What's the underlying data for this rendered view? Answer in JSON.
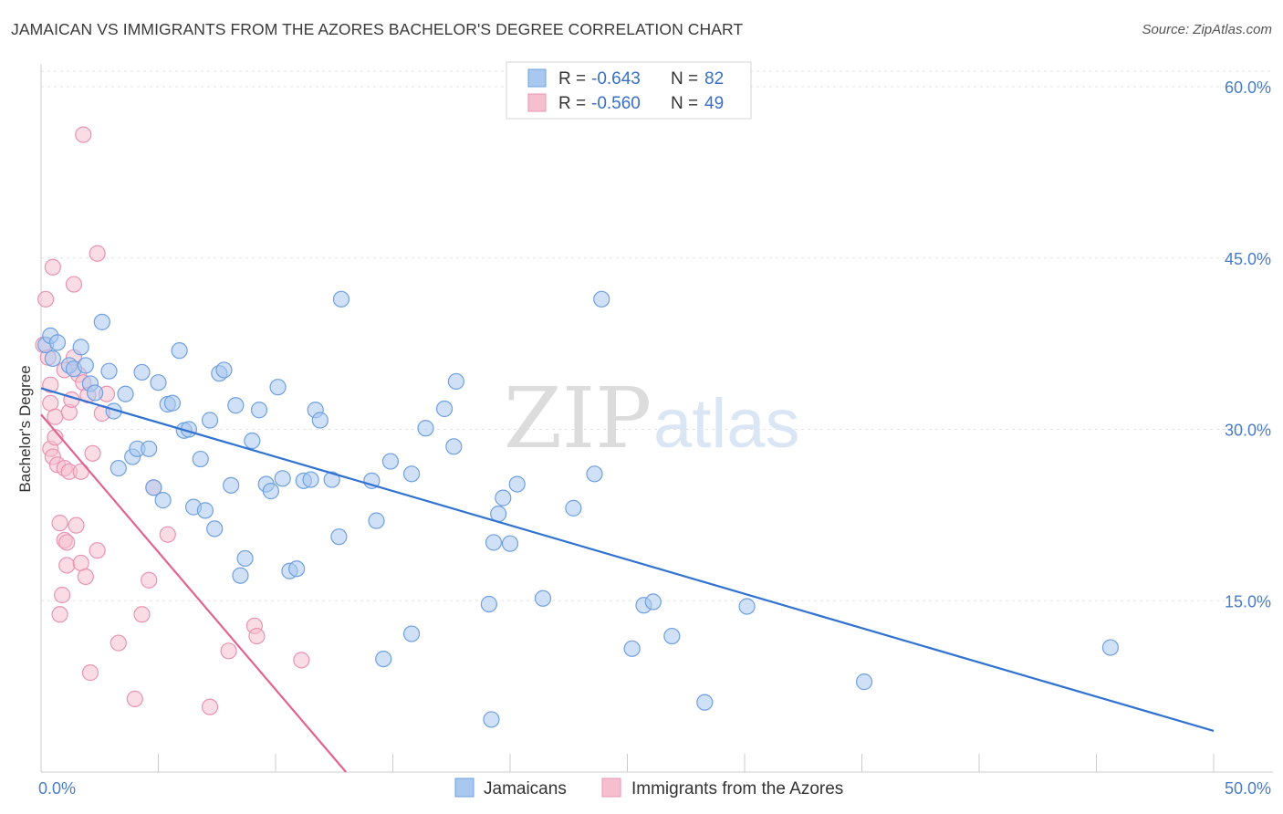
{
  "title": "JAMAICAN VS IMMIGRANTS FROM THE AZORES BACHELOR'S DEGREE CORRELATION CHART",
  "source": "Source: ZipAtlas.com",
  "watermark": {
    "zip": "ZIP",
    "atlas": "atlas"
  },
  "colors": {
    "blue_fill": "#a9c8f0",
    "blue_stroke": "#6fa0e0",
    "blue_line": "#2f72d2",
    "pink_fill": "#f6bfd0",
    "pink_stroke": "#e994b2",
    "pink_line": "#e0648e",
    "grid": "#e3e3e3",
    "axis": "#cccccc",
    "tick_text": "#4a7cc7"
  },
  "legend": {
    "series": [
      {
        "r_label": "R =",
        "r_value": "-0.643",
        "n_label": "N =",
        "n_value": "82"
      },
      {
        "r_label": "R =",
        "r_value": "-0.560",
        "n_label": "N =",
        "n_value": "49"
      }
    ]
  },
  "chart_data": {
    "type": "scatter",
    "title": "JAMAICAN VS IMMIGRANTS FROM THE AZORES BACHELOR'S DEGREE CORRELATION CHART",
    "xlabel": "",
    "ylabel": "Bachelor's Degree",
    "xlim": [
      0,
      50
    ],
    "ylim": [
      0,
      62
    ],
    "x_tick_labels": [
      "0.0%",
      "50.0%"
    ],
    "y_ticks": [
      15,
      30,
      45,
      60
    ],
    "y_tick_labels": [
      "15.0%",
      "30.0%",
      "45.0%",
      "60.0%"
    ],
    "grid": true,
    "legend_position": "top-center",
    "series": [
      {
        "name": "Jamaicans",
        "color": "#a9c8f0",
        "trend": {
          "x": [
            0,
            50
          ],
          "y": [
            33.6,
            3.6
          ]
        },
        "points": [
          [
            0.2,
            37.4
          ],
          [
            0.4,
            38.2
          ],
          [
            0.5,
            36.2
          ],
          [
            0.7,
            37.6
          ],
          [
            1.2,
            35.6
          ],
          [
            1.4,
            35.3
          ],
          [
            1.7,
            37.2
          ],
          [
            1.9,
            35.6
          ],
          [
            2.1,
            34.0
          ],
          [
            2.3,
            33.2
          ],
          [
            2.6,
            39.4
          ],
          [
            2.9,
            35.1
          ],
          [
            3.1,
            31.6
          ],
          [
            3.3,
            26.6
          ],
          [
            3.6,
            33.1
          ],
          [
            3.9,
            27.6
          ],
          [
            4.1,
            28.3
          ],
          [
            4.3,
            35.0
          ],
          [
            4.6,
            28.3
          ],
          [
            4.8,
            24.9
          ],
          [
            5.0,
            34.1
          ],
          [
            5.2,
            23.8
          ],
          [
            5.4,
            32.2
          ],
          [
            5.6,
            32.3
          ],
          [
            5.9,
            36.9
          ],
          [
            6.1,
            29.9
          ],
          [
            6.3,
            30.0
          ],
          [
            6.5,
            23.2
          ],
          [
            6.8,
            27.4
          ],
          [
            7.0,
            22.9
          ],
          [
            7.2,
            30.8
          ],
          [
            7.4,
            21.3
          ],
          [
            7.6,
            34.9
          ],
          [
            7.8,
            35.2
          ],
          [
            8.1,
            25.1
          ],
          [
            8.3,
            32.1
          ],
          [
            8.5,
            17.2
          ],
          [
            8.7,
            18.7
          ],
          [
            9.0,
            29.0
          ],
          [
            9.3,
            31.7
          ],
          [
            9.6,
            25.2
          ],
          [
            9.8,
            24.6
          ],
          [
            10.1,
            33.7
          ],
          [
            10.3,
            25.7
          ],
          [
            10.6,
            17.6
          ],
          [
            10.9,
            17.8
          ],
          [
            11.2,
            25.5
          ],
          [
            11.5,
            25.6
          ],
          [
            11.7,
            31.7
          ],
          [
            11.9,
            30.8
          ],
          [
            12.4,
            25.6
          ],
          [
            12.7,
            20.6
          ],
          [
            12.8,
            41.4
          ],
          [
            14.1,
            25.5
          ],
          [
            14.3,
            22.0
          ],
          [
            14.6,
            9.9
          ],
          [
            14.9,
            27.2
          ],
          [
            15.8,
            26.1
          ],
          [
            15.8,
            12.1
          ],
          [
            16.4,
            30.1
          ],
          [
            17.2,
            31.8
          ],
          [
            17.6,
            28.5
          ],
          [
            17.7,
            34.2
          ],
          [
            19.1,
            14.7
          ],
          [
            19.3,
            20.1
          ],
          [
            19.5,
            22.6
          ],
          [
            19.7,
            24.0
          ],
          [
            20.0,
            20.0
          ],
          [
            20.3,
            25.2
          ],
          [
            21.4,
            15.2
          ],
          [
            22.7,
            23.1
          ],
          [
            23.6,
            26.1
          ],
          [
            23.9,
            41.4
          ],
          [
            25.2,
            10.8
          ],
          [
            25.7,
            14.6
          ],
          [
            26.1,
            14.9
          ],
          [
            26.9,
            11.9
          ],
          [
            28.3,
            6.1
          ],
          [
            30.1,
            14.5
          ],
          [
            35.1,
            7.9
          ],
          [
            45.6,
            10.9
          ],
          [
            19.2,
            4.6
          ]
        ]
      },
      {
        "name": "Immigrants from the Azores",
        "color": "#f6bfd0",
        "trend": {
          "x": [
            0,
            13
          ],
          "y": [
            31.3,
            0
          ]
        },
        "points": [
          [
            0.1,
            37.4
          ],
          [
            0.2,
            41.4
          ],
          [
            0.3,
            36.3
          ],
          [
            0.4,
            33.9
          ],
          [
            0.4,
            32.3
          ],
          [
            0.4,
            28.3
          ],
          [
            0.5,
            27.6
          ],
          [
            0.5,
            44.2
          ],
          [
            0.6,
            31.1
          ],
          [
            0.6,
            29.3
          ],
          [
            0.7,
            26.9
          ],
          [
            0.8,
            21.8
          ],
          [
            0.8,
            13.8
          ],
          [
            0.9,
            15.5
          ],
          [
            1.0,
            26.6
          ],
          [
            1.0,
            35.2
          ],
          [
            1.0,
            20.3
          ],
          [
            1.1,
            20.1
          ],
          [
            1.1,
            18.1
          ],
          [
            1.2,
            31.5
          ],
          [
            1.2,
            26.3
          ],
          [
            1.3,
            32.6
          ],
          [
            1.4,
            36.3
          ],
          [
            1.4,
            42.7
          ],
          [
            1.5,
            21.6
          ],
          [
            1.6,
            34.8
          ],
          [
            1.7,
            18.3
          ],
          [
            1.7,
            26.3
          ],
          [
            1.8,
            34.1
          ],
          [
            1.8,
            55.8
          ],
          [
            1.9,
            17.1
          ],
          [
            2.0,
            33.0
          ],
          [
            2.1,
            8.7
          ],
          [
            2.2,
            27.9
          ],
          [
            2.4,
            19.4
          ],
          [
            2.4,
            45.4
          ],
          [
            2.6,
            31.4
          ],
          [
            2.8,
            33.1
          ],
          [
            3.3,
            11.3
          ],
          [
            4.0,
            6.4
          ],
          [
            4.3,
            13.8
          ],
          [
            4.6,
            16.8
          ],
          [
            4.8,
            24.9
          ],
          [
            5.4,
            20.8
          ],
          [
            7.2,
            5.7
          ],
          [
            8.0,
            10.6
          ],
          [
            9.1,
            12.8
          ],
          [
            9.2,
            11.9
          ],
          [
            11.1,
            9.8
          ]
        ]
      }
    ]
  }
}
